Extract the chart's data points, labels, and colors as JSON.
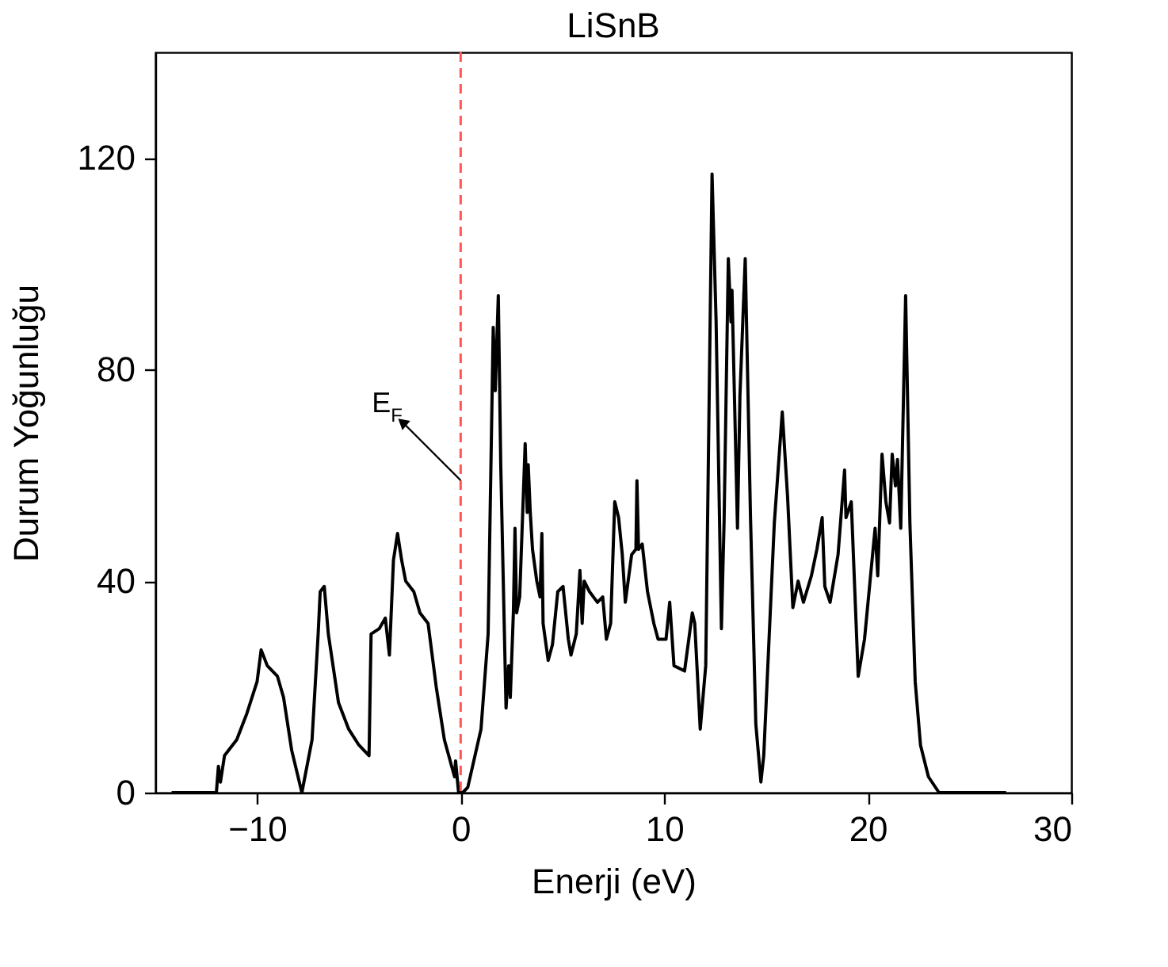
{
  "chart_data": {
    "type": "line",
    "title": "LiSnB",
    "xlabel": "Enerji (eV)",
    "ylabel": "Durum Yoğunluğu",
    "xlim": [
      -15,
      30
    ],
    "ylim": [
      0,
      140
    ],
    "xticks": [
      -10,
      0,
      10,
      20,
      30
    ],
    "yticks": [
      0,
      40,
      80,
      120
    ],
    "grid": false,
    "marker": "none",
    "line_style": "solid",
    "ref_lines": [
      {
        "axis": "x",
        "value": 0,
        "color": "#ff5555",
        "line_style": "dashed"
      }
    ],
    "annotations": [
      "E$_{F}$"
    ],
    "series": [
      {
        "color": "#000000",
        "x": [
          -14.2,
          -12.0,
          -11.9,
          -11.8,
          -11.6,
          -11.0,
          -10.5,
          -10.0,
          -9.8,
          -9.5,
          -9.0,
          -8.7,
          -8.3,
          -7.8,
          -7.3,
          -7.0,
          -6.9,
          -6.7,
          -6.5,
          -6.0,
          -5.5,
          -5.0,
          -4.5,
          -4.4,
          -4.0,
          -3.7,
          -3.5,
          -3.3,
          -3.1,
          -2.9,
          -2.7,
          -2.3,
          -2.0,
          -1.6,
          -1.2,
          -0.8,
          -0.3,
          -0.25,
          -0.1,
          0.1,
          0.35,
          1.0,
          1.35,
          1.6,
          1.7,
          1.85,
          1.97,
          2.23,
          2.36,
          2.44,
          2.59,
          2.67,
          2.75,
          2.9,
          3.17,
          3.27,
          3.32,
          3.42,
          3.53,
          3.74,
          3.9,
          3.99,
          4.05,
          4.3,
          4.51,
          4.77,
          5.03,
          5.29,
          5.42,
          5.68,
          5.86,
          5.97,
          6.07,
          6.33,
          6.72,
          6.98,
          7.16,
          7.37,
          7.57,
          7.76,
          7.94,
          8.09,
          8.4,
          8.61,
          8.66,
          8.74,
          8.92,
          9.18,
          9.49,
          9.7,
          10.09,
          10.27,
          10.48,
          11.0,
          11.38,
          11.5,
          11.77,
          12.04,
          12.35,
          12.55,
          12.81,
          12.94,
          13.15,
          13.28,
          13.33,
          13.6,
          13.72,
          13.98,
          14.24,
          14.5,
          14.75,
          14.89,
          15.41,
          15.8,
          16.06,
          16.32,
          16.58,
          16.84,
          17.23,
          17.5,
          17.76,
          17.89,
          18.15,
          18.54,
          18.86,
          18.93,
          19.19,
          19.53,
          19.84,
          20.36,
          20.49,
          20.7,
          20.89,
          21.07,
          21.2,
          21.36,
          21.46,
          21.62,
          21.86,
          22.07,
          22.33,
          22.59,
          22.98,
          23.5,
          26.8
        ],
        "values": [
          0,
          0,
          5,
          2,
          7,
          10,
          15,
          21,
          27,
          24,
          22,
          18,
          8,
          0,
          10,
          30,
          38,
          39,
          30,
          17,
          12,
          9,
          7,
          30,
          31,
          33,
          26,
          44,
          49,
          44,
          40,
          38,
          34,
          32,
          20,
          10,
          3,
          6,
          0,
          0,
          1,
          12,
          30,
          88,
          76,
          94,
          62,
          16,
          24,
          18,
          34,
          50,
          34,
          37,
          66,
          53,
          62,
          53,
          46,
          40,
          37,
          49,
          32,
          25,
          28,
          38,
          39,
          29,
          26,
          30,
          42,
          32,
          40,
          38,
          36,
          37,
          29,
          32,
          55,
          52,
          45,
          36,
          45,
          46,
          59,
          46,
          47,
          38,
          32,
          29,
          29,
          36,
          24,
          23,
          34,
          32,
          12,
          24,
          117,
          89,
          31,
          51,
          101,
          89,
          95,
          50,
          75,
          101,
          52,
          13,
          2,
          7,
          51,
          72,
          56,
          35,
          40,
          36,
          41,
          46,
          52,
          39,
          36,
          45,
          61,
          52,
          55,
          22,
          29,
          50,
          41,
          64,
          55,
          51,
          64,
          58,
          63,
          50,
          94,
          51,
          21,
          9,
          3,
          0,
          0
        ]
      }
    ]
  }
}
